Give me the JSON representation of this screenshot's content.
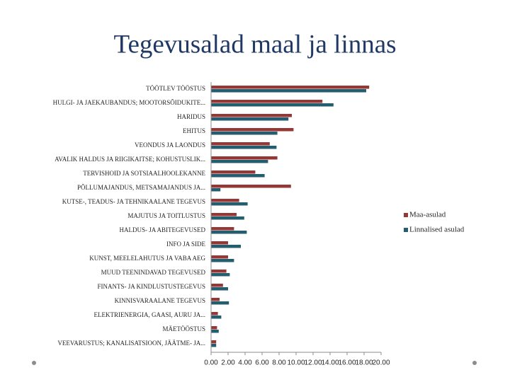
{
  "chart_data": {
    "type": "hbar",
    "title": "Tegevusalad maal ja linnas",
    "categories": [
      "TÖÖTLEV TÖÖSTUS",
      "HULGI- JA JAEKAUBANDUS; MOOTORSÕIDUKITE...",
      "HARIDUS",
      "EHITUS",
      "VEONDUS JA LAONDUS",
      "AVALIK HALDUS JA RIIGIKAITSE; KOHUSTUSLIK...",
      "TERVISHOID JA SOTSIAALHOOLEKANNE",
      "PÕLLUMAJANDUS, METSAMAJANDUS JA...",
      "KUTSE-, TEADUS- JA TEHNIKAALANE TEGEVUS",
      "MAJUTUS JA TOITLUSTUS",
      "HALDUS- JA ABITEGEVUSED",
      "INFO JA SIDE",
      "KUNST, MEELELAHUTUS JA VABA AEG",
      "MUUD TEENINDAVAD TEGEVUSED",
      "FINANTS- JA KINDLUSTUSTEGEVUS",
      "KINNISVARAALANE TEGEVUS",
      "ELEKTRIENERGIA, GAASI, AURU JA...",
      "MÄETÖÖSTUS",
      "VEEVARUSTUS; KANALISATSIOON, JÄÄTME- JA..."
    ],
    "series": [
      {
        "name": "Maa-asulad",
        "color": "#953735",
        "values": [
          18.6,
          13.1,
          9.5,
          9.7,
          6.9,
          7.8,
          5.2,
          9.4,
          3.3,
          3.0,
          2.7,
          2.0,
          2.0,
          1.8,
          1.4,
          1.0,
          0.8,
          0.7,
          0.6
        ]
      },
      {
        "name": "Linnalised asulad",
        "color": "#245e6e",
        "values": [
          18.25,
          14.4,
          9.1,
          7.8,
          7.7,
          6.7,
          6.3,
          1.1,
          4.3,
          3.9,
          4.2,
          3.5,
          2.7,
          2.2,
          2.0,
          2.1,
          1.2,
          0.9,
          0.6
        ]
      }
    ],
    "xlim": [
      0,
      20
    ],
    "xticks": [
      {
        "value": 0,
        "label": "0.00"
      },
      {
        "value": 2,
        "label": "2.00"
      },
      {
        "value": 4,
        "label": "4.00"
      },
      {
        "value": 6,
        "label": "6.00"
      },
      {
        "value": 8,
        "label": "8.00"
      },
      {
        "value": 10,
        "label": "10.00"
      },
      {
        "value": 12,
        "label": "12.00"
      },
      {
        "value": 14,
        "label": "14.00"
      },
      {
        "value": 16,
        "label": "16.00"
      },
      {
        "value": 18,
        "label": "18.00"
      },
      {
        "value": 20,
        "label": "20.00"
      }
    ],
    "legend": "right"
  }
}
